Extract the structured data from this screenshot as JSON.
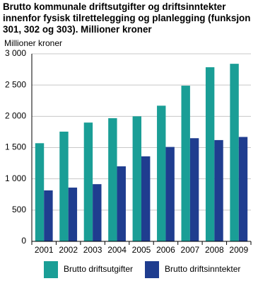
{
  "chart_data": {
    "type": "bar",
    "title": "Brutto kommunale driftsutgifter og driftsinntekter innenfor fysisk tilrettelegging og planlegging (funksjon 301, 302 og 303). Millioner kroner",
    "y_label": "Millioner kroner",
    "categories": [
      "2001",
      "2002",
      "2003",
      "2004",
      "2005",
      "2006",
      "2007",
      "2008",
      "2009"
    ],
    "series": [
      {
        "name": "Brutto driftsutgifter",
        "color": "#1a9e96",
        "values": [
          1570,
          1755,
          1900,
          1970,
          2000,
          2170,
          2490,
          2785,
          2840
        ]
      },
      {
        "name": "Brutto driftsinntekter",
        "color": "#1f3d8f",
        "values": [
          815,
          860,
          915,
          1200,
          1360,
          1510,
          1650,
          1620,
          1670
        ]
      }
    ],
    "ylim": [
      0,
      3000
    ],
    "yticks": [
      0,
      500,
      {
        "value": 1000,
        "label": "1 000"
      },
      {
        "value": 1500,
        "label": "1 500"
      },
      {
        "value": 2000,
        "label": "2 000"
      },
      {
        "value": 2500,
        "label": "2 500"
      },
      {
        "value": 3000,
        "label": "3 000"
      }
    ],
    "grid": true
  }
}
